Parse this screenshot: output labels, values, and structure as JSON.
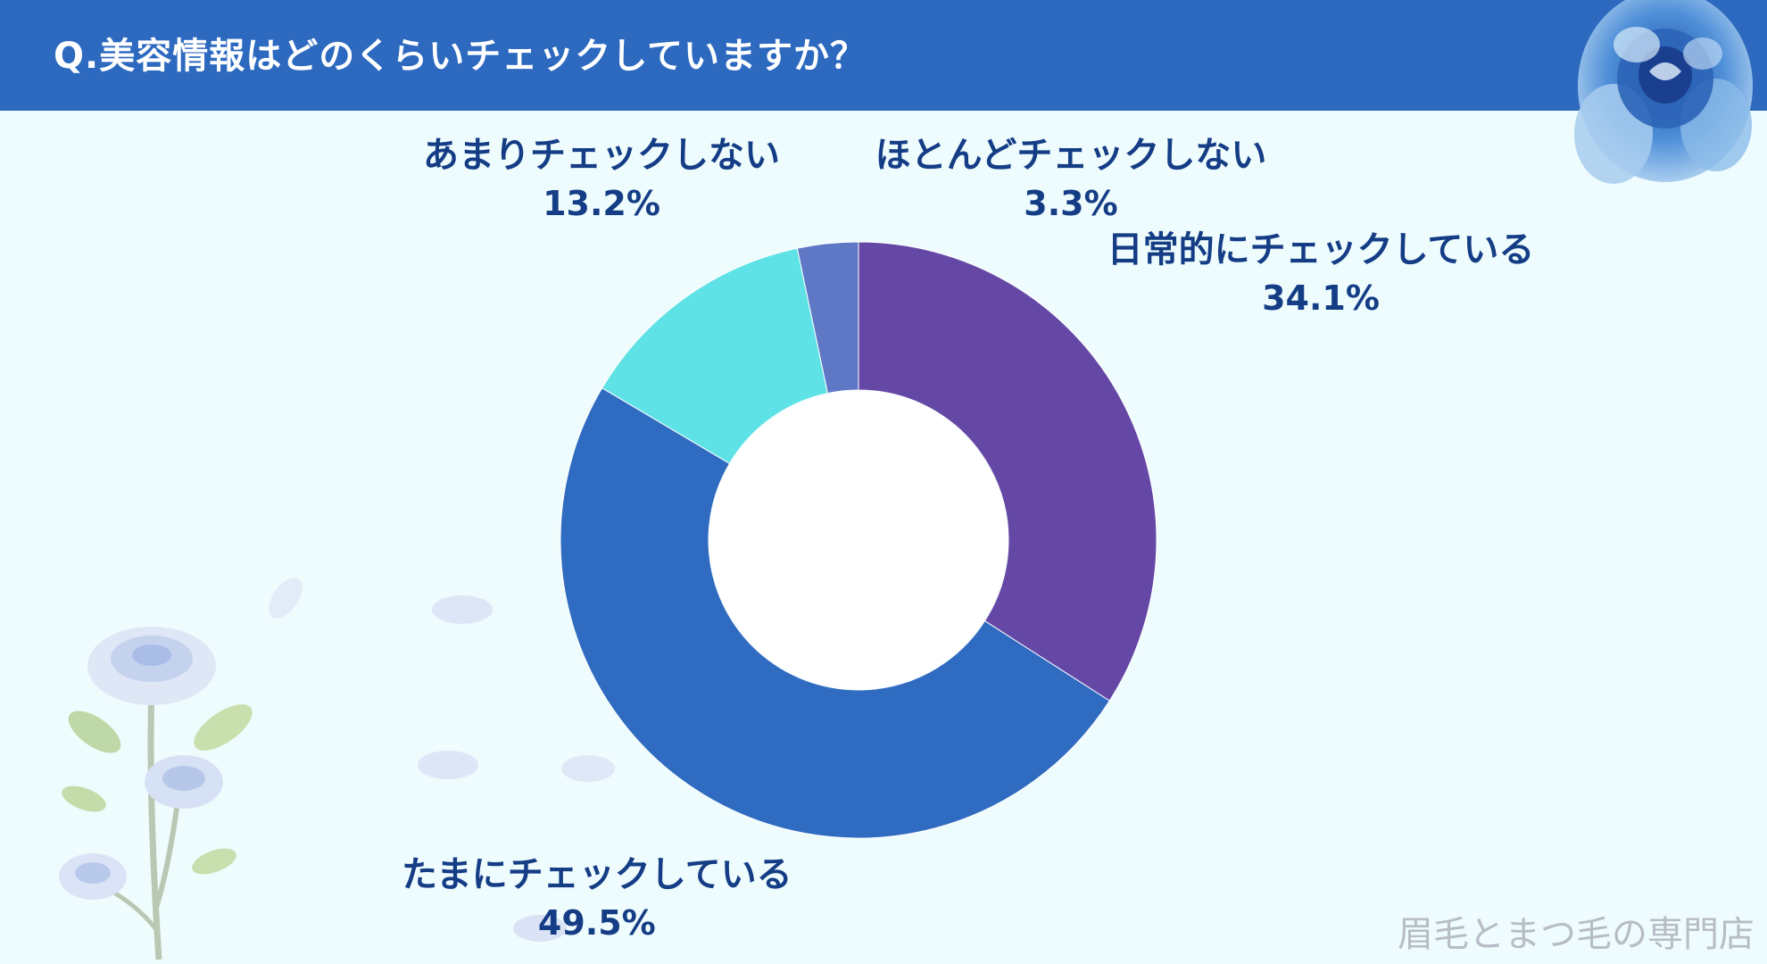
{
  "header": {
    "title": "Q.美容情報はどのくらいチェックしていますか？"
  },
  "chart_data": {
    "type": "pie",
    "donut": true,
    "categories": [
      "日常的にチェックしている",
      "たまにチェックしている",
      "あまりチェックしない",
      "ほとんどチェックしない"
    ],
    "values": [
      34.1,
      49.5,
      13.2,
      3.3
    ],
    "value_labels": [
      "34.1%",
      "49.5%",
      "13.2%",
      "3.3%"
    ],
    "colors": [
      "#6548a6",
      "#2f6bc0",
      "#5fe2e6",
      "#5e78c6"
    ],
    "start_angle": "12 o'clock",
    "direction": "clockwise"
  },
  "colors": {
    "header_bg": "#2c69bf",
    "background": "#eefcfd",
    "label_text": "#143d86"
  },
  "decorations": {
    "top_right": "blue-rose-icon",
    "bottom_left": "rose-stem-icon",
    "petals": "petal-icon"
  },
  "footer": {
    "watermark": "眉毛とまつ毛の専門店"
  }
}
